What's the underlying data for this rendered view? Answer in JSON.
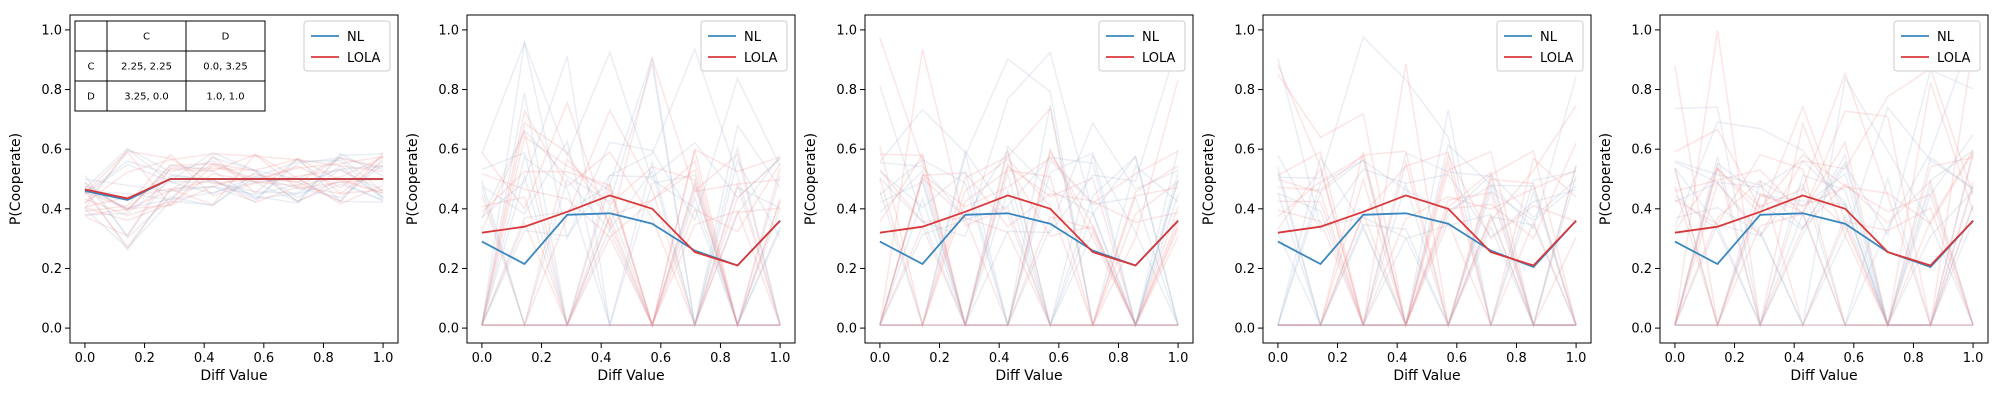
{
  "chart_data": [
    {
      "type": "line",
      "xlabel": "Diff Value",
      "ylabel": "P(Cooperate)",
      "xlim": [
        -0.05,
        1.05
      ],
      "ylim": [
        -0.05,
        1.05
      ],
      "xticks": [
        "0.0",
        "0.2",
        "0.4",
        "0.6",
        "0.8",
        "1.0"
      ],
      "yticks": [
        "0.0",
        "0.2",
        "0.4",
        "0.6",
        "0.8",
        "1.0"
      ],
      "x": [
        0.0,
        0.143,
        0.286,
        0.429,
        0.571,
        0.714,
        0.857,
        1.0
      ],
      "legend_position": "top-right",
      "series": [
        {
          "name": "NL",
          "color": "#3a87c0",
          "values": [
            0.46,
            0.43,
            0.5,
            0.5,
            0.5,
            0.5,
            0.5,
            0.5
          ]
        },
        {
          "name": "LOLA",
          "color": "#d9383a",
          "values": [
            0.465,
            0.435,
            0.5,
            0.5,
            0.5,
            0.5,
            0.5,
            0.5
          ]
        }
      ],
      "payoff_table": {
        "headers": [
          "",
          "C",
          "D"
        ],
        "rows": [
          [
            "C",
            "2.25, 2.25",
            "0.0, 3.25"
          ],
          [
            "D",
            "3.25, 0.0",
            "1.0, 1.0"
          ]
        ]
      }
    },
    {
      "type": "line",
      "xlabel": "Diff Value",
      "ylabel": "P(Cooperate)",
      "xlim": [
        -0.05,
        1.05
      ],
      "ylim": [
        -0.05,
        1.05
      ],
      "xticks": [
        "0.0",
        "0.2",
        "0.4",
        "0.6",
        "0.8",
        "1.0"
      ],
      "yticks": [
        "0.0",
        "0.2",
        "0.4",
        "0.6",
        "0.8",
        "1.0"
      ],
      "x": [
        0.0,
        0.143,
        0.286,
        0.429,
        0.571,
        0.714,
        0.857,
        1.0
      ],
      "legend_position": "top-right",
      "series": [
        {
          "name": "NL",
          "color": "#3a87c0",
          "values": [
            0.29,
            0.215,
            0.38,
            0.385,
            0.35,
            0.26,
            0.21,
            0.36
          ]
        },
        {
          "name": "LOLA",
          "color": "#d9383a",
          "values": [
            0.32,
            0.34,
            0.39,
            0.445,
            0.4,
            0.255,
            0.21,
            0.36
          ]
        }
      ]
    },
    {
      "type": "line",
      "xlabel": "Diff Value",
      "ylabel": "P(Cooperate)",
      "xlim": [
        -0.05,
        1.05
      ],
      "ylim": [
        -0.05,
        1.05
      ],
      "xticks": [
        "0.0",
        "0.2",
        "0.4",
        "0.6",
        "0.8",
        "1.0"
      ],
      "yticks": [
        "0.0",
        "0.2",
        "0.4",
        "0.6",
        "0.8",
        "1.0"
      ],
      "x": [
        0.0,
        0.143,
        0.286,
        0.429,
        0.571,
        0.714,
        0.857,
        1.0
      ],
      "legend_position": "top-right",
      "series": [
        {
          "name": "NL",
          "color": "#3a87c0",
          "values": [
            0.29,
            0.215,
            0.38,
            0.385,
            0.35,
            0.26,
            0.21,
            0.36
          ]
        },
        {
          "name": "LOLA",
          "color": "#d9383a",
          "values": [
            0.32,
            0.34,
            0.39,
            0.445,
            0.4,
            0.255,
            0.21,
            0.36
          ]
        }
      ]
    },
    {
      "type": "line",
      "xlabel": "Diff Value",
      "ylabel": "P(Cooperate)",
      "xlim": [
        -0.05,
        1.05
      ],
      "ylim": [
        -0.05,
        1.05
      ],
      "xticks": [
        "0.0",
        "0.2",
        "0.4",
        "0.6",
        "0.8",
        "1.0"
      ],
      "yticks": [
        "0.0",
        "0.2",
        "0.4",
        "0.6",
        "0.8",
        "1.0"
      ],
      "x": [
        0.0,
        0.143,
        0.286,
        0.429,
        0.571,
        0.714,
        0.857,
        1.0
      ],
      "legend_position": "top-right",
      "series": [
        {
          "name": "NL",
          "color": "#3a87c0",
          "values": [
            0.29,
            0.215,
            0.38,
            0.385,
            0.35,
            0.26,
            0.205,
            0.36
          ]
        },
        {
          "name": "LOLA",
          "color": "#d9383a",
          "values": [
            0.32,
            0.34,
            0.39,
            0.445,
            0.4,
            0.255,
            0.21,
            0.36
          ]
        }
      ]
    },
    {
      "type": "line",
      "xlabel": "Diff Value",
      "ylabel": "P(Cooperate)",
      "xlim": [
        -0.05,
        1.05
      ],
      "ylim": [
        -0.05,
        1.05
      ],
      "xticks": [
        "0.0",
        "0.2",
        "0.4",
        "0.6",
        "0.8",
        "1.0"
      ],
      "yticks": [
        "0.0",
        "0.2",
        "0.4",
        "0.6",
        "0.8",
        "1.0"
      ],
      "x": [
        0.0,
        0.143,
        0.286,
        0.429,
        0.571,
        0.714,
        0.857,
        1.0
      ],
      "legend_position": "top-right",
      "series": [
        {
          "name": "NL",
          "color": "#3a87c0",
          "values": [
            0.29,
            0.215,
            0.38,
            0.385,
            0.35,
            0.255,
            0.205,
            0.36
          ]
        },
        {
          "name": "LOLA",
          "color": "#d9383a",
          "values": [
            0.32,
            0.34,
            0.39,
            0.445,
            0.4,
            0.255,
            0.21,
            0.36
          ]
        }
      ]
    }
  ]
}
